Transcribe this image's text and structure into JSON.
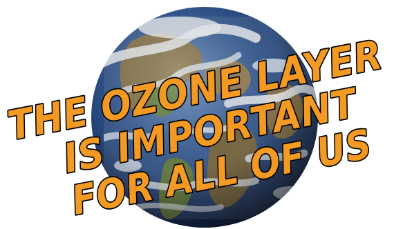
{
  "slogan": {
    "line1": "THE OZONE LAYER",
    "line2": "IS IMPORTANT",
    "line3": "FOR ALL OF US"
  },
  "colors": {
    "text_fill": "#f39a24",
    "text_outline": "#000000",
    "ocean": "#2b4f86",
    "land": "#8a7a52",
    "cloud": "#e8edf2",
    "background": "#ffffff"
  },
  "icons": {
    "globe": "earth-globe-icon"
  }
}
